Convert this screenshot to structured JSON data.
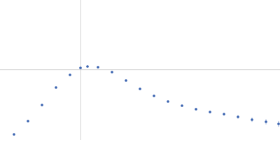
{
  "chart_data": {
    "type": "scatter",
    "x": [
      0.3,
      0.6,
      0.9,
      1.2,
      1.5,
      1.725,
      1.875,
      2.1,
      2.4,
      2.7,
      3.0,
      3.3,
      3.6,
      3.9,
      4.2,
      4.5,
      4.8,
      5.1,
      5.4,
      5.7,
      5.97
    ],
    "values": [
      0.088,
      0.297,
      0.55,
      0.825,
      1.023,
      1.133,
      1.155,
      1.144,
      1.067,
      0.935,
      0.803,
      0.693,
      0.605,
      0.539,
      0.484,
      0.44,
      0.407,
      0.363,
      0.319,
      0.286,
      0.253
    ],
    "errors": [
      0.004,
      0.004,
      0.004,
      0.005,
      0.005,
      0.005,
      0.006,
      0.006,
      0.007,
      0.008,
      0.01,
      0.012,
      0.014,
      0.016,
      0.018,
      0.02,
      0.024,
      0.028,
      0.034,
      0.04,
      0.045
    ],
    "color": "#3b64b0",
    "xlim": [
      0,
      6
    ],
    "ylim": [
      0,
      2.2
    ],
    "guides": {
      "x": 1.732,
      "y": 1.104
    }
  }
}
